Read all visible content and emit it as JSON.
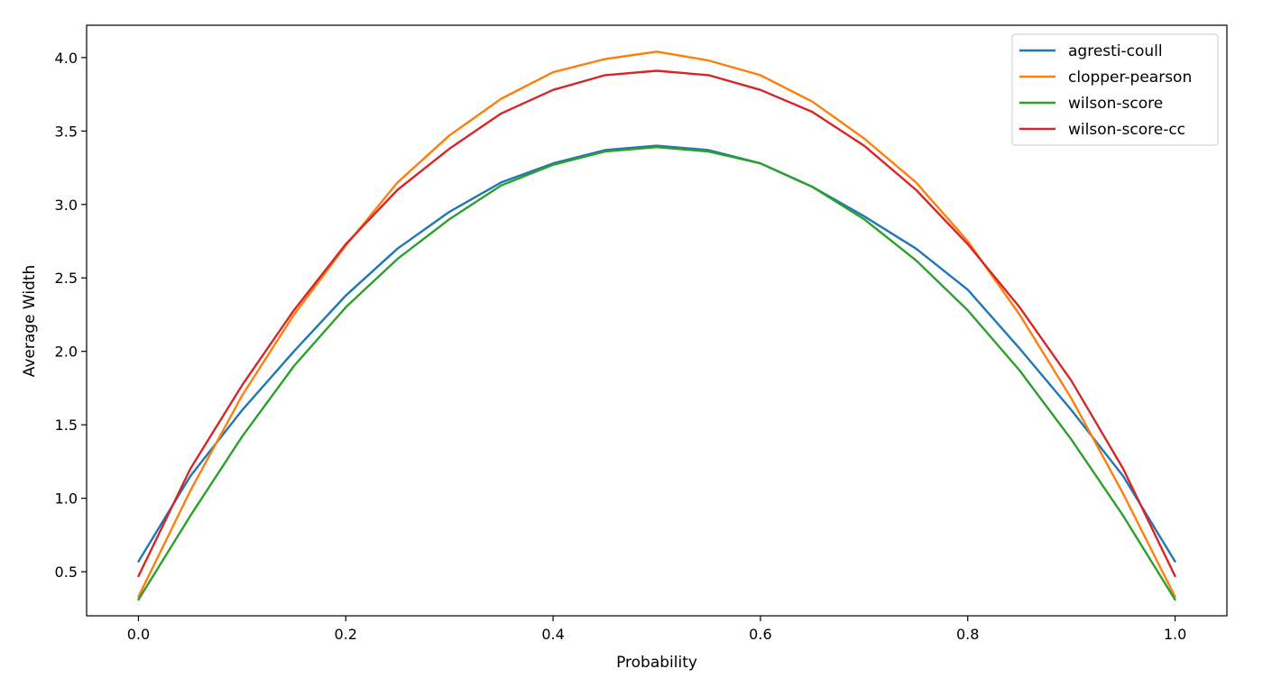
{
  "chart_data": {
    "type": "line",
    "title": "",
    "xlabel": "Probability",
    "ylabel": "Average Width",
    "xlim": [
      -0.05,
      1.05
    ],
    "ylim": [
      0.2,
      4.22
    ],
    "x_ticks": [
      0.0,
      0.2,
      0.4,
      0.6,
      0.8,
      1.0
    ],
    "x_tick_labels": [
      "0.0",
      "0.2",
      "0.4",
      "0.6",
      "0.8",
      "1.0"
    ],
    "y_ticks": [
      0.5,
      1.0,
      1.5,
      2.0,
      2.5,
      3.0,
      3.5,
      4.0
    ],
    "y_tick_labels": [
      "0.5",
      "1.0",
      "1.5",
      "2.0",
      "2.5",
      "3.0",
      "3.5",
      "4.0"
    ],
    "grid": false,
    "legend_position": "top-right",
    "x": [
      0.0,
      0.05,
      0.1,
      0.15,
      0.2,
      0.25,
      0.3,
      0.35,
      0.4,
      0.45,
      0.5,
      0.55,
      0.6,
      0.65,
      0.7,
      0.75,
      0.8,
      0.85,
      0.9,
      0.95,
      1.0
    ],
    "series": [
      {
        "name": "agresti-coull",
        "color": "#1f77b4",
        "values": [
          0.57,
          1.15,
          1.6,
          2.0,
          2.38,
          2.7,
          2.95,
          3.15,
          3.28,
          3.37,
          3.4,
          3.37,
          3.28,
          3.12,
          2.92,
          2.7,
          2.42,
          2.02,
          1.6,
          1.15,
          0.57
        ]
      },
      {
        "name": "clopper-pearson",
        "color": "#ff7f0e",
        "values": [
          0.33,
          1.05,
          1.7,
          2.25,
          2.72,
          3.15,
          3.47,
          3.72,
          3.9,
          3.99,
          4.04,
          3.98,
          3.88,
          3.7,
          3.45,
          3.15,
          2.75,
          2.25,
          1.68,
          1.03,
          0.33
        ]
      },
      {
        "name": "wilson-score",
        "color": "#2ca02c",
        "values": [
          0.31,
          0.88,
          1.42,
          1.9,
          2.3,
          2.63,
          2.9,
          3.13,
          3.27,
          3.36,
          3.39,
          3.36,
          3.28,
          3.12,
          2.9,
          2.62,
          2.28,
          1.87,
          1.4,
          0.88,
          0.31
        ]
      },
      {
        "name": "wilson-score-cc",
        "color": "#d62728",
        "values": [
          0.47,
          1.2,
          1.77,
          2.28,
          2.73,
          3.1,
          3.38,
          3.62,
          3.78,
          3.88,
          3.91,
          3.88,
          3.78,
          3.63,
          3.4,
          3.1,
          2.73,
          2.3,
          1.8,
          1.2,
          0.47
        ]
      }
    ]
  }
}
